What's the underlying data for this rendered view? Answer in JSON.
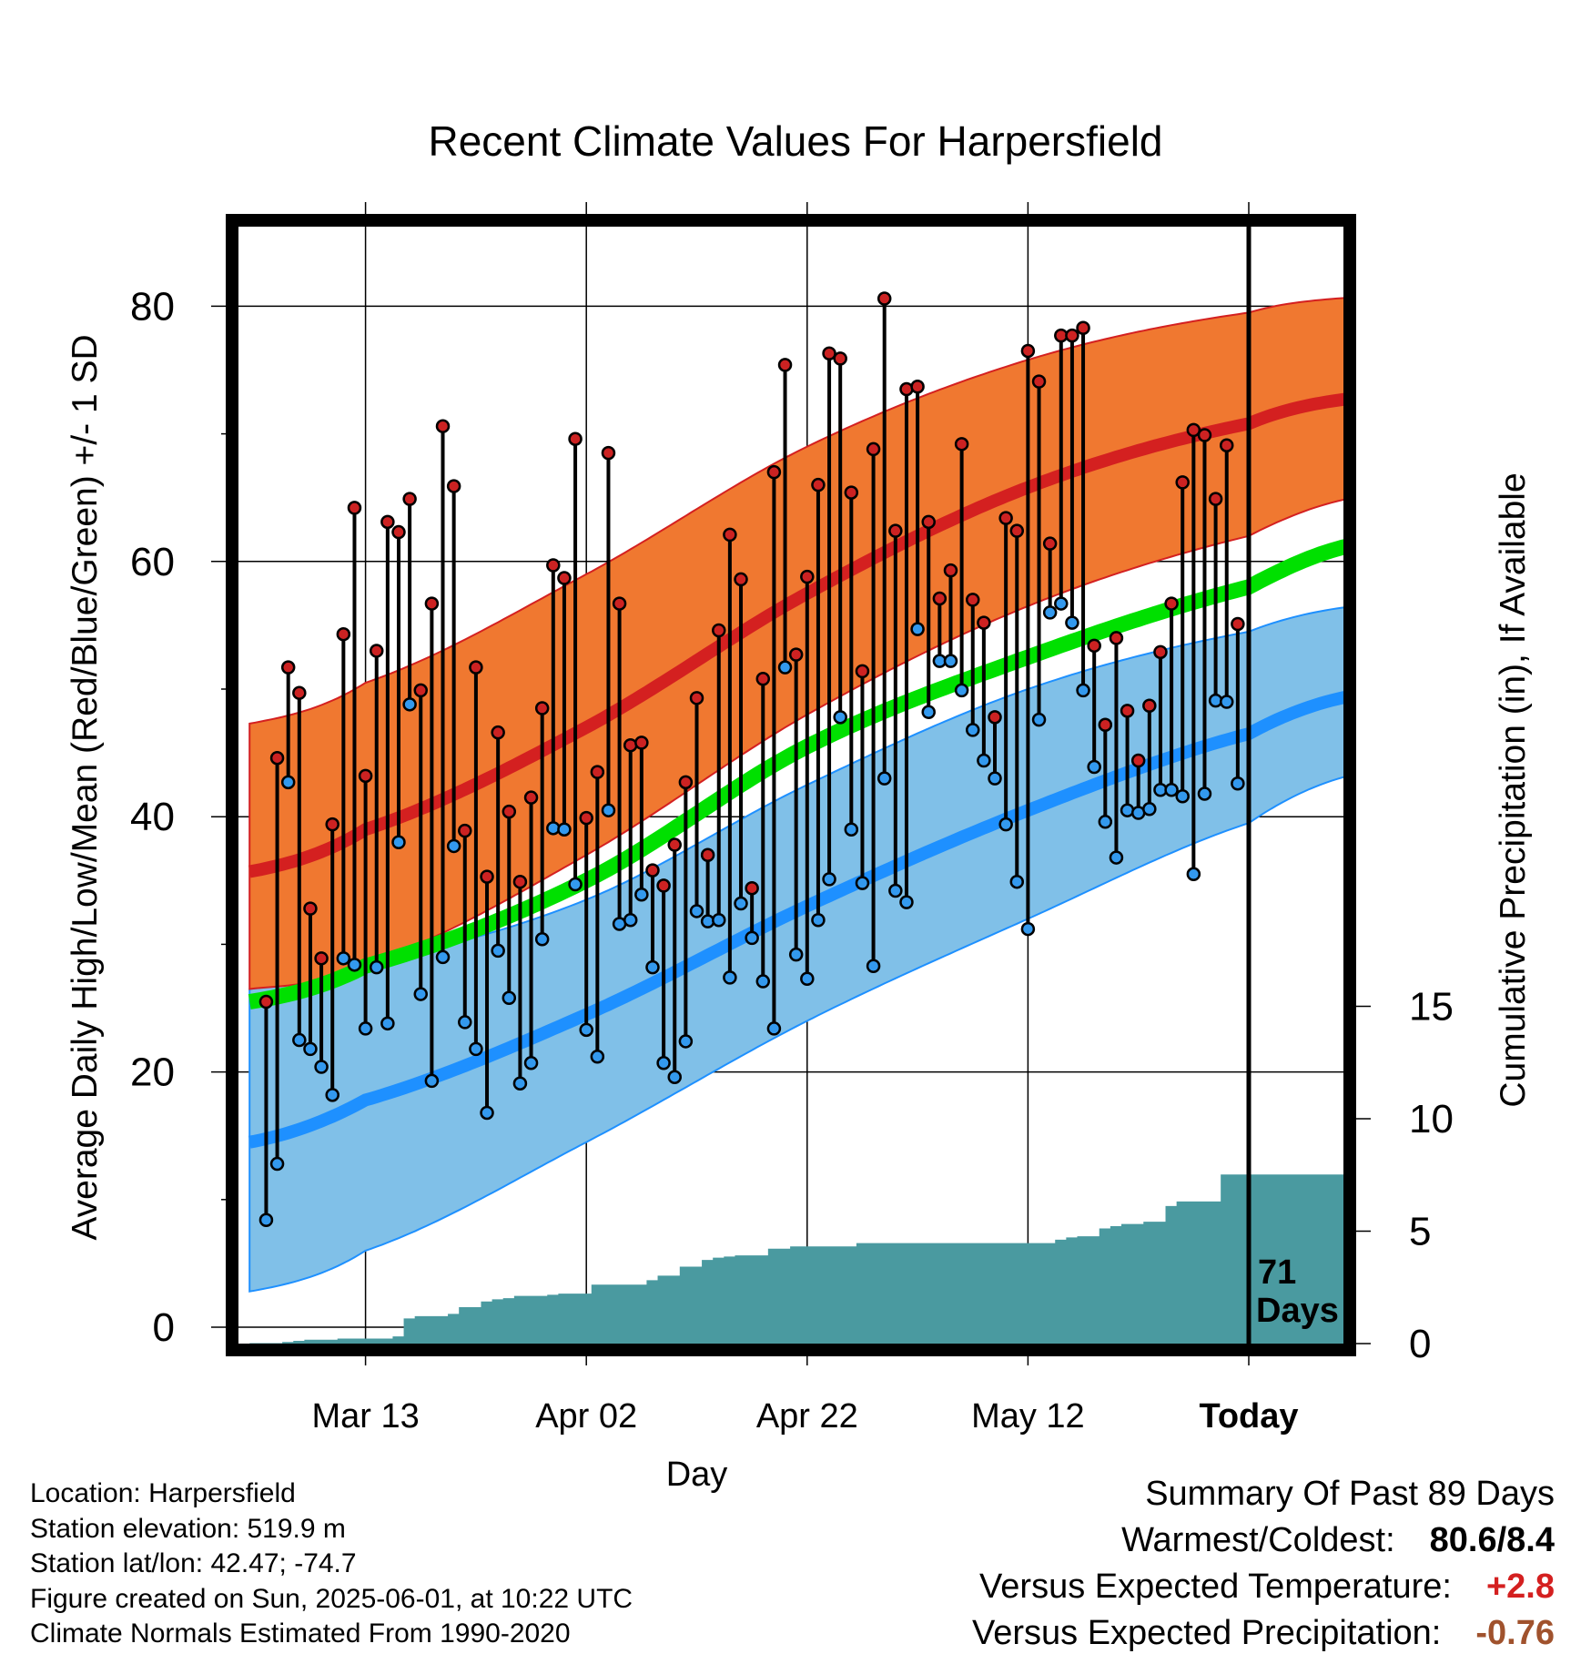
{
  "title": "Recent Climate Values For Harpersfield",
  "chart_data": {
    "type": "line",
    "title": "Recent Climate Values For Harpersfield",
    "xlabel": "Day",
    "ylabel": "Average Daily High/Low/Mean (Red/Blue/Green) +/- 1 SD",
    "y2label": "Cumulative Precipitation (in), If Available",
    "ylim": [
      -2,
      86
    ],
    "y2lim": [
      0,
      22
    ],
    "x_tick_labels": [
      "Mar 13",
      "Apr 02",
      "Apr 22",
      "May 12",
      "Today"
    ],
    "x_tick_days": [
      -80,
      -60,
      -40,
      -20,
      0
    ],
    "xlim": [
      -90.5,
      9.5
    ],
    "y_ticks": [
      0,
      20,
      40,
      60,
      80
    ],
    "y2_ticks": [
      0,
      5,
      10,
      15
    ],
    "grid": true,
    "today_marker_label": [
      "71",
      "Days"
    ],
    "colors": {
      "high_band": "#f07830",
      "high_line": "#d42020",
      "low_band": "#80c0e8",
      "low_line": "#1e90ff",
      "mean_line": "#00e000",
      "precip": "#4a9aa0",
      "high_dot": "#cc2222",
      "low_dot": "#3399ee"
    },
    "normals": {
      "x": [
        -90.5,
        -80,
        -60,
        -40,
        -20,
        0,
        9.5
      ],
      "high_mean": [
        35.7,
        39.0,
        47.0,
        57.5,
        65.8,
        70.8,
        72.8
      ],
      "high_upper": [
        47.3,
        50.5,
        59.0,
        69.0,
        75.8,
        79.5,
        80.7
      ],
      "high_lower": [
        26.5,
        28.5,
        37.0,
        48.0,
        56.5,
        62.0,
        65.0
      ],
      "low_mean": [
        14.5,
        17.8,
        24.5,
        33.0,
        40.5,
        46.5,
        49.5
      ],
      "low_upper": [
        26.5,
        28.5,
        33.5,
        42.5,
        50.0,
        54.5,
        56.5
      ],
      "low_lower": [
        2.8,
        6.0,
        14.5,
        24.0,
        32.0,
        39.5,
        43.3
      ],
      "mean": [
        25.5,
        28.3,
        35.0,
        45.5,
        52.5,
        58.0,
        61.3
      ]
    },
    "series": [
      {
        "name": "High",
        "values": [
          25.5,
          44.6,
          51.7,
          49.7,
          32.8,
          28.9,
          39.4,
          54.3,
          64.2,
          43.2,
          53.0,
          63.1,
          62.3,
          64.9,
          49.9,
          56.7,
          70.6,
          65.9,
          38.9,
          51.7,
          35.3,
          46.6,
          40.4,
          34.9,
          41.5,
          48.5,
          59.7,
          58.7,
          69.6,
          39.9,
          43.5,
          68.5,
          56.7,
          45.6,
          45.8,
          35.8,
          34.6,
          37.8,
          42.7,
          49.3,
          37.0,
          54.6,
          62.1,
          58.6,
          34.4,
          50.8,
          67.0,
          75.4,
          52.7,
          58.8,
          66.0,
          76.3,
          75.9,
          65.4,
          51.4,
          68.8,
          80.6,
          62.4,
          73.5,
          73.7,
          63.1,
          57.1,
          59.3,
          69.2,
          57.0,
          55.2,
          47.8,
          63.4,
          62.4,
          76.5,
          74.1,
          61.4,
          77.7,
          77.7,
          78.3,
          53.4,
          47.2,
          54.0,
          48.3,
          44.4,
          48.7,
          52.9,
          56.7,
          66.2,
          70.3,
          69.9,
          64.9,
          69.1,
          55.1
        ]
      },
      {
        "name": "Low",
        "values": [
          8.4,
          12.8,
          42.7,
          22.5,
          21.8,
          20.4,
          18.2,
          28.9,
          28.4,
          23.4,
          28.2,
          23.8,
          38.0,
          48.8,
          26.1,
          19.3,
          29.0,
          37.7,
          23.9,
          21.8,
          16.8,
          29.5,
          25.8,
          19.1,
          20.7,
          30.4,
          39.1,
          39.0,
          34.7,
          23.3,
          21.2,
          40.5,
          31.6,
          31.9,
          33.9,
          28.2,
          20.7,
          19.6,
          22.4,
          32.6,
          31.8,
          31.9,
          27.4,
          33.2,
          30.5,
          27.1,
          23.4,
          51.7,
          29.2,
          27.3,
          31.9,
          35.1,
          47.8,
          39.0,
          34.8,
          28.3,
          43.0,
          34.2,
          33.3,
          54.7,
          48.2,
          52.2,
          52.2,
          49.9,
          46.8,
          44.4,
          43.0,
          39.4,
          34.9,
          31.2,
          47.6,
          56.0,
          56.7,
          55.2,
          49.9,
          43.9,
          39.6,
          36.8,
          40.5,
          40.3,
          40.6,
          42.1,
          42.1,
          41.6,
          35.5,
          41.8,
          49.1,
          49.0,
          42.6
        ]
      },
      {
        "name": "Cumulative Precipitation",
        "values": [
          0,
          0,
          0,
          0.05,
          0.1,
          0.15,
          0.15,
          0.15,
          0.2,
          0.2,
          0.2,
          0.2,
          0.2,
          0.3,
          1.1,
          1.2,
          1.2,
          1.2,
          1.3,
          1.6,
          1.6,
          1.85,
          1.95,
          2,
          2.1,
          2.1,
          2.1,
          2.15,
          2.2,
          2.2,
          2.2,
          2.6,
          2.6,
          2.6,
          2.6,
          2.6,
          2.8,
          3.0,
          3.0,
          3.4,
          3.4,
          3.7,
          3.8,
          3.85,
          3.9,
          3.9,
          3.9,
          4.2,
          4.2,
          4.3,
          4.3,
          4.3,
          4.3,
          4.3,
          4.3,
          4.45,
          4.45,
          4.45,
          4.45,
          4.45,
          4.45,
          4.45,
          4.45,
          4.45,
          4.45,
          4.45,
          4.45,
          4.45,
          4.45,
          4.45,
          4.45,
          4.45,
          4.45,
          4.6,
          4.7,
          4.75,
          4.75,
          5.1,
          5.2,
          5.3,
          5.3,
          5.4,
          5.4,
          6.1,
          6.3,
          6.3,
          6.3,
          6.3,
          7.5,
          7.5,
          7.5,
          7.5,
          7.5,
          7.5,
          7.5,
          7.5,
          7.5,
          7.5,
          7.5,
          7.5
        ]
      }
    ]
  },
  "footer": {
    "location": "Location: Harpersfield",
    "elevation": "Station elevation: 519.9 m",
    "latlon": "Station lat/lon: 42.47; -74.7",
    "created": "Figure created on Sun, 2025-06-01, at 10:22 UTC",
    "normals": "Climate Normals Estimated From 1990-2020"
  },
  "summary": {
    "heading": "Summary Of Past 89 Days",
    "warmest_label": "Warmest/Coldest:",
    "warmest_value": "80.6/8.4",
    "temp_label": "Versus Expected Temperature:",
    "temp_value": "+2.8",
    "temp_color": "#d42020",
    "precip_label": "Versus Expected Precipitation:",
    "precip_value": "-0.76",
    "precip_color": "#a0522d"
  }
}
